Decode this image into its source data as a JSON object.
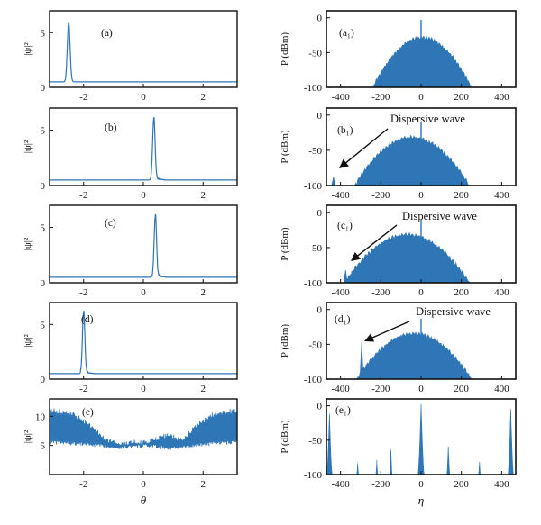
{
  "colors": {
    "series": "#2F76B6",
    "axis": "#111111",
    "annotation_arrow": "#111111"
  },
  "chart_data": [
    {
      "id": "a",
      "type": "line",
      "side": "left",
      "row": 0,
      "panel_label": "(a)",
      "ylabel": "|ψ|²",
      "xlabel": "",
      "xlim": [
        -3.14,
        3.14
      ],
      "ylim": [
        0,
        7
      ],
      "xticks": [
        -2,
        0,
        2
      ],
      "xtick_labels": [
        "-2",
        "0",
        "2"
      ],
      "yticks": [
        0,
        5
      ],
      "ytick_labels": [
        "0",
        "5"
      ],
      "profile": {
        "baseline": 0.5,
        "peak_x": -2.5,
        "peak_y": 5.9,
        "peak_width": 0.045,
        "oscillation": "none",
        "tail_amplitude": 0.15
      }
    },
    {
      "id": "b",
      "type": "line",
      "side": "left",
      "row": 1,
      "panel_label": "(b)",
      "ylabel": "|ψ|²",
      "xlabel": "",
      "xlim": [
        -3.14,
        3.14
      ],
      "ylim": [
        0,
        7
      ],
      "xticks": [
        -2,
        0,
        2
      ],
      "xtick_labels": [
        "-2",
        "0",
        "2"
      ],
      "yticks": [
        0,
        5
      ],
      "ytick_labels": [
        "0",
        "5"
      ],
      "profile": {
        "baseline": 0.5,
        "peak_x": 0.35,
        "peak_y": 6.0,
        "peak_width": 0.04,
        "oscillation": "ripple",
        "tail_amplitude": 0.6
      }
    },
    {
      "id": "c",
      "type": "line",
      "side": "left",
      "row": 2,
      "panel_label": "(c)",
      "ylabel": "|ψ|²",
      "xlabel": "",
      "xlim": [
        -3.14,
        3.14
      ],
      "ylim": [
        0,
        7
      ],
      "xticks": [
        -2,
        0,
        2
      ],
      "xtick_labels": [
        "-2",
        "0",
        "2"
      ],
      "yticks": [
        0,
        5
      ],
      "ytick_labels": [
        "0",
        "5"
      ],
      "profile": {
        "baseline": 0.5,
        "peak_x": 0.4,
        "peak_y": 5.9,
        "peak_width": 0.04,
        "oscillation": "ripple",
        "tail_amplitude": 0.6
      }
    },
    {
      "id": "d",
      "type": "line",
      "side": "left",
      "row": 3,
      "panel_label": "(d)",
      "ylabel": "|ψ|²",
      "xlabel": "",
      "xlim": [
        -3.14,
        3.14
      ],
      "ylim": [
        0,
        7
      ],
      "xticks": [
        -2,
        0,
        2
      ],
      "xtick_labels": [
        "-2",
        "0",
        "2"
      ],
      "yticks": [
        0,
        5
      ],
      "ytick_labels": [
        "0",
        "5"
      ],
      "profile": {
        "baseline": 0.5,
        "peak_x": -2.0,
        "peak_y": 6.1,
        "peak_width": 0.04,
        "oscillation": "ripple",
        "tail_amplitude": 0.5
      }
    },
    {
      "id": "e",
      "type": "area",
      "side": "left",
      "row": 4,
      "panel_label": "(e)",
      "ylabel": "|ψ|²",
      "xlabel": "θ",
      "xlim": [
        -3.14,
        3.14
      ],
      "ylim": [
        0,
        13
      ],
      "xticks": [
        -2,
        0,
        2
      ],
      "xtick_labels": [
        "-2",
        "0",
        "2"
      ],
      "yticks": [
        5,
        10
      ],
      "ytick_labels": [
        "5",
        "10"
      ],
      "profile": {
        "envelope_upper": [
          [
            -3.14,
            11.5
          ],
          [
            -2.4,
            11.0
          ],
          [
            -1.8,
            9.0
          ],
          [
            -1.2,
            6.3
          ],
          [
            -0.8,
            5.5
          ],
          [
            -0.4,
            6.0
          ],
          [
            0,
            5.9
          ],
          [
            0.4,
            6.6
          ],
          [
            0.8,
            7.2
          ],
          [
            1.3,
            6.4
          ],
          [
            1.8,
            9.0
          ],
          [
            2.4,
            11.0
          ],
          [
            3.14,
            11.5
          ]
        ],
        "envelope_lower": [
          [
            -3.14,
            5.2
          ],
          [
            -2.4,
            5.0
          ],
          [
            -1.8,
            4.8
          ],
          [
            -1.2,
            4.5
          ],
          [
            -0.8,
            4.3
          ],
          [
            -0.4,
            4.5
          ],
          [
            0,
            4.6
          ],
          [
            0.4,
            4.5
          ],
          [
            0.8,
            4.2
          ],
          [
            1.3,
            4.3
          ],
          [
            1.8,
            4.7
          ],
          [
            2.4,
            5.0
          ],
          [
            3.14,
            5.2
          ]
        ]
      }
    },
    {
      "id": "a1",
      "type": "area",
      "side": "right",
      "row": 0,
      "panel_label": "(a₁)",
      "ylabel": "P (dBm)",
      "xlabel": "",
      "xlim": [
        -470,
        470
      ],
      "ylim": [
        -100,
        10
      ],
      "xticks": [
        -400,
        -200,
        0,
        200,
        400
      ],
      "xtick_labels": [
        "-400",
        "-200",
        "0",
        "200",
        "400"
      ],
      "yticks": [
        -100,
        -50,
        0
      ],
      "ytick_labels": [
        "-100",
        "-50",
        "0"
      ],
      "spectrum": {
        "hump": [
          -240,
          250,
          -27
        ],
        "spike": [
          0,
          -3
        ],
        "dw": null
      }
    },
    {
      "id": "b1",
      "type": "area",
      "side": "right",
      "row": 1,
      "panel_label": "(b₁)",
      "ylabel": "P (dBm)",
      "xlabel": "",
      "xlim": [
        -470,
        470
      ],
      "ylim": [
        -100,
        10
      ],
      "xticks": [
        -400,
        -200,
        0,
        200,
        400
      ],
      "xtick_labels": [
        "-400",
        "-200",
        "0",
        "200",
        "400"
      ],
      "yticks": [
        -100,
        -50,
        0
      ],
      "ytick_labels": [
        "-100",
        "-50",
        "0"
      ],
      "annotation": "Dispersive wave",
      "spectrum": {
        "hump": [
          -330,
          240,
          -30
        ],
        "spike": [
          0,
          -10
        ],
        "dw": [
          -435,
          -88
        ]
      }
    },
    {
      "id": "c1",
      "type": "area",
      "side": "right",
      "row": 2,
      "panel_label": "(c₁)",
      "ylabel": "P (dBm)",
      "xlabel": "",
      "xlim": [
        -470,
        470
      ],
      "ylim": [
        -100,
        10
      ],
      "xticks": [
        -400,
        -200,
        0,
        200,
        400
      ],
      "xtick_labels": [
        "-400",
        "-200",
        "0",
        "200",
        "400"
      ],
      "yticks": [
        -100,
        -50,
        0
      ],
      "ytick_labels": [
        "-100",
        "-50",
        "0"
      ],
      "annotation": "Dispersive wave",
      "spectrum": {
        "hump": [
          -380,
          240,
          -30
        ],
        "spike": [
          0,
          -10
        ],
        "dw": [
          -375,
          -82
        ]
      }
    },
    {
      "id": "d1",
      "type": "area",
      "side": "right",
      "row": 3,
      "panel_label": "(d₁)",
      "ylabel": "P (dBm)",
      "xlabel": "",
      "xlim": [
        -470,
        470
      ],
      "ylim": [
        -100,
        10
      ],
      "xticks": [
        -400,
        -200,
        0,
        200,
        400
      ],
      "xtick_labels": [
        "-400",
        "-200",
        "0",
        "200",
        "400"
      ],
      "yticks": [
        -100,
        -50,
        0
      ],
      "ytick_labels": [
        "-100",
        "-50",
        "0"
      ],
      "annotation": "Dispersive wave",
      "spectrum": {
        "hump": [
          -320,
          250,
          -33
        ],
        "spike": [
          0,
          -13
        ],
        "dw": [
          -295,
          -47
        ]
      }
    },
    {
      "id": "e1",
      "type": "area",
      "side": "right",
      "row": 4,
      "panel_label": "(e₁)",
      "ylabel": "P (dBm)",
      "xlabel": "η",
      "xlim": [
        -470,
        470
      ],
      "ylim": [
        -100,
        10
      ],
      "xticks": [
        -400,
        -200,
        0,
        200,
        400
      ],
      "xtick_labels": [
        "-400",
        "-200",
        "0",
        "200",
        "400"
      ],
      "yticks": [
        -100,
        -50,
        0
      ],
      "ytick_labels": [
        "-100",
        "-50",
        "0"
      ],
      "spectrum_peaks": [
        {
          "x": -455,
          "y": -10,
          "w": 14
        },
        {
          "x": -315,
          "y": -82,
          "w": 5
        },
        {
          "x": -220,
          "y": -78,
          "w": 5
        },
        {
          "x": -150,
          "y": -62,
          "w": 7
        },
        {
          "x": 0,
          "y": 4,
          "w": 16
        },
        {
          "x": 135,
          "y": -58,
          "w": 8
        },
        {
          "x": 290,
          "y": -80,
          "w": 5
        },
        {
          "x": 445,
          "y": -3,
          "w": 14
        }
      ]
    }
  ]
}
